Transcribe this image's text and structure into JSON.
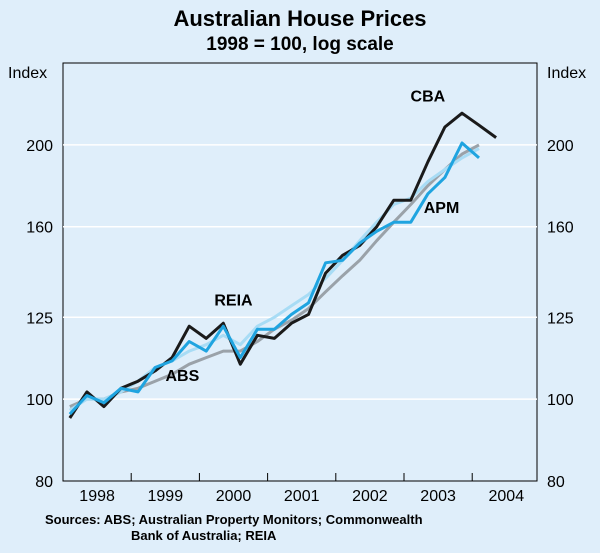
{
  "chart_data": {
    "type": "line",
    "title": "Australian House Prices",
    "subtitle": "1998 = 100, log scale",
    "ylabel_left": "Index",
    "ylabel_right": "Index",
    "yscale": "log",
    "ylim": [
      80,
      250
    ],
    "yticks": [
      80,
      100,
      125,
      160,
      200
    ],
    "xlim": [
      1997.65,
      2004.6
    ],
    "xticks": [
      {
        "label": "1998",
        "value": 1998.15
      },
      {
        "label": "1999",
        "value": 1999.15
      },
      {
        "label": "2000",
        "value": 2000.15
      },
      {
        "label": "2001",
        "value": 2001.15
      },
      {
        "label": "2002",
        "value": 2002.15
      },
      {
        "label": "2003",
        "value": 2003.15
      },
      {
        "label": "2004",
        "value": 2004.15
      }
    ],
    "series": [
      {
        "name": "ABS",
        "color": "#9aa2a9",
        "x": [
          1997.75,
          1998.0,
          1998.25,
          1998.5,
          1998.75,
          1999.0,
          1999.25,
          1999.5,
          1999.75,
          2000.0,
          2000.25,
          2000.5,
          2000.75,
          2001.0,
          2001.25,
          2001.5,
          2001.75,
          2002.0,
          2002.25,
          2002.5,
          2002.75,
          2003.0,
          2003.25,
          2003.5,
          2003.75
        ],
        "values": [
          98,
          100,
          100,
          102,
          103,
          105,
          107,
          110,
          112,
          114,
          114,
          117,
          121,
          124,
          128,
          134,
          140,
          146,
          154,
          162,
          170,
          179,
          187,
          195,
          200
        ]
      },
      {
        "name": "REIA",
        "color": "#a8dcf5",
        "x": [
          1997.75,
          1998.0,
          1998.25,
          1998.5,
          1998.75,
          1999.0,
          1999.25,
          1999.5,
          1999.75,
          2000.0,
          2000.25,
          2000.5,
          2000.75,
          2001.0,
          2001.25,
          2001.5,
          2001.75,
          2002.0,
          2002.25,
          2002.5,
          2002.75,
          2003.0,
          2003.25,
          2003.5,
          2003.75
        ],
        "values": [
          97,
          100,
          100,
          102,
          105,
          109,
          111,
          114,
          116,
          119,
          116,
          122,
          125,
          129,
          133,
          139,
          146,
          154,
          162,
          170,
          173,
          181,
          187,
          193,
          198
        ]
      },
      {
        "name": "CBA",
        "color": "#1a1a1a",
        "x": [
          1997.75,
          1998.0,
          1998.25,
          1998.5,
          1998.75,
          1999.0,
          1999.25,
          1999.5,
          1999.75,
          2000.0,
          2000.25,
          2000.5,
          2000.75,
          2001.0,
          2001.25,
          2001.5,
          2001.75,
          2002.0,
          2002.25,
          2002.5,
          2002.75,
          2003.0,
          2003.25,
          2003.5,
          2003.75,
          2004.0
        ],
        "values": [
          95,
          102,
          98,
          103,
          105,
          108,
          112,
          122,
          118,
          123,
          110,
          119,
          118,
          123,
          126,
          141,
          148,
          152,
          160,
          172,
          172,
          191,
          210,
          218,
          211,
          204
        ]
      },
      {
        "name": "APM",
        "color": "#1fa4e0",
        "x": [
          1997.75,
          1998.0,
          1998.25,
          1998.5,
          1998.75,
          1999.0,
          1999.25,
          1999.5,
          1999.75,
          2000.0,
          2000.25,
          2000.5,
          2000.75,
          2001.0,
          2001.25,
          2001.5,
          2001.75,
          2002.0,
          2002.25,
          2002.5,
          2002.75,
          2003.0,
          2003.25,
          2003.5,
          2003.75
        ],
        "values": [
          96,
          101,
          99,
          103,
          102,
          109,
          111,
          117,
          114,
          122,
          112,
          121,
          121,
          126,
          130,
          145,
          146,
          153,
          158,
          162,
          162,
          175,
          183,
          201,
          193
        ]
      }
    ],
    "annotations": [
      {
        "text": "CBA",
        "x": 2003.0,
        "y": 225
      },
      {
        "text": "APM",
        "x": 2003.2,
        "y": 166
      },
      {
        "text": "REIA",
        "x": 2000.15,
        "y": 129
      },
      {
        "text": "ABS",
        "x": 1999.4,
        "y": 105
      }
    ],
    "sources_line1": "Sources: ABS; Australian Property Monitors; Commonwealth",
    "sources_line2": "Bank of Australia; REIA"
  }
}
